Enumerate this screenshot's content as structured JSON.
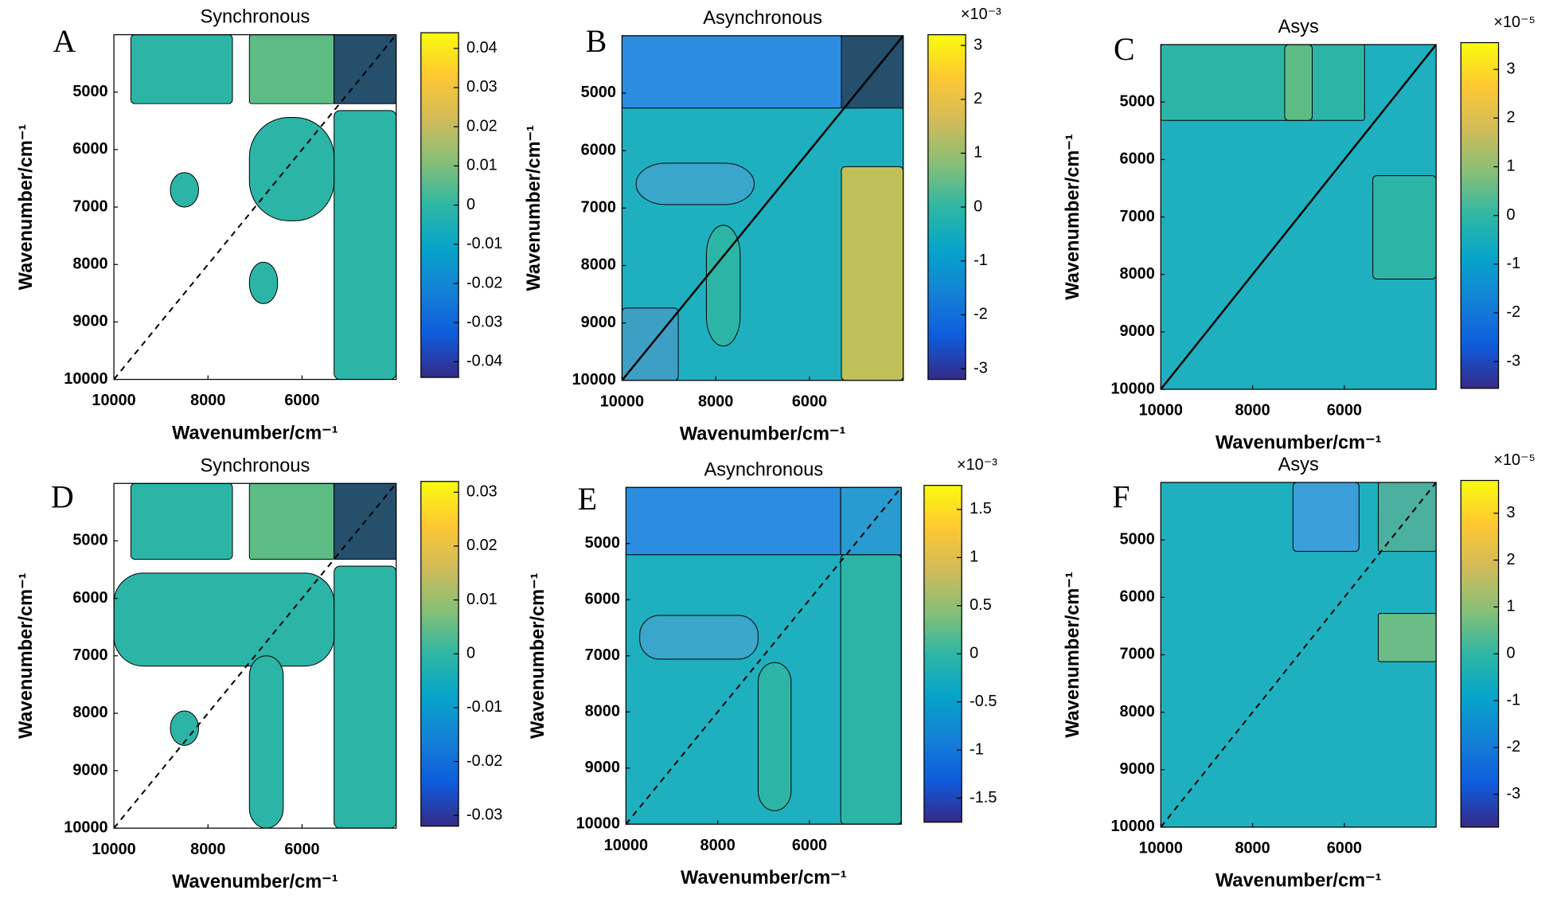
{
  "chart_data": [
    {
      "type": "contour",
      "panel": "A",
      "title": "Synchronous",
      "xlabel": "Wavenumber/cm⁻¹",
      "ylabel": "Wavenumber/cm⁻¹",
      "xlim": [
        10000,
        4000
      ],
      "xticks": [
        10000,
        8000,
        6000
      ],
      "ylim": [
        10000,
        4000
      ],
      "yticks": [
        5000,
        6000,
        7000,
        8000,
        9000,
        10000
      ],
      "clim": [
        -0.044,
        0.044
      ],
      "cticks": [
        -0.04,
        -0.03,
        -0.02,
        -0.01,
        0,
        0.01,
        0.02,
        0.03,
        0.04
      ],
      "colormap": "parula",
      "diagonal": "dashed"
    },
    {
      "type": "contour",
      "panel": "B",
      "title": "Asynchronous",
      "xlabel": "Wavenumber/cm⁻¹",
      "ylabel": "Wavenumber/cm⁻¹",
      "xlim": [
        10000,
        4000
      ],
      "xticks": [
        10000,
        8000,
        6000
      ],
      "ylim": [
        10000,
        4000
      ],
      "yticks": [
        5000,
        6000,
        7000,
        8000,
        9000,
        10000
      ],
      "clim": [
        -3.2,
        3.2
      ],
      "cticks": [
        -3,
        -2,
        -1,
        0,
        1,
        2,
        3
      ],
      "colorbar_exponent": "×10⁻³",
      "colormap": "parula",
      "diagonal": "solid"
    },
    {
      "type": "contour",
      "panel": "C",
      "title": "Asys",
      "xlabel": "Wavenumber/cm⁻¹",
      "ylabel": "Wavenumber/cm⁻¹",
      "xlim": [
        10000,
        4000
      ],
      "xticks": [
        10000,
        8000,
        6000
      ],
      "ylim": [
        10000,
        4000
      ],
      "yticks": [
        5000,
        6000,
        7000,
        8000,
        9000,
        10000
      ],
      "clim": [
        -3.55,
        3.55
      ],
      "cticks": [
        -3,
        -2,
        -1,
        0,
        1,
        2,
        3
      ],
      "colorbar_exponent": "×10⁻⁵",
      "colormap": "parula",
      "diagonal": "solid"
    },
    {
      "type": "contour",
      "panel": "D",
      "title": "Synchronous",
      "xlabel": "Wavenumber/cm⁻¹",
      "ylabel": "Wavenumber/cm⁻¹",
      "xlim": [
        10000,
        4000
      ],
      "xticks": [
        10000,
        8000,
        6000
      ],
      "ylim": [
        10000,
        4000
      ],
      "yticks": [
        5000,
        6000,
        7000,
        8000,
        9000,
        10000
      ],
      "clim": [
        -0.032,
        0.032
      ],
      "cticks": [
        -0.03,
        -0.02,
        -0.01,
        0,
        0.01,
        0.02,
        0.03
      ],
      "colormap": "parula",
      "diagonal": "dashed"
    },
    {
      "type": "contour",
      "panel": "E",
      "title": "Asynchronous",
      "xlabel": "Wavenumber/cm⁻¹",
      "ylabel": "Wavenumber/cm⁻¹",
      "xlim": [
        10000,
        4000
      ],
      "xticks": [
        10000,
        8000,
        6000
      ],
      "ylim": [
        10000,
        4000
      ],
      "yticks": [
        5000,
        6000,
        7000,
        8000,
        9000,
        10000
      ],
      "clim": [
        -1.75,
        1.75
      ],
      "cticks": [
        -1.5,
        -1,
        -0.5,
        0,
        0.5,
        1,
        1.5
      ],
      "colorbar_exponent": "×10⁻³",
      "colormap": "parula",
      "diagonal": "dashed"
    },
    {
      "type": "contour",
      "panel": "F",
      "title": "Asys",
      "xlabel": "Wavenumber/cm⁻¹",
      "ylabel": "Wavenumber/cm⁻¹",
      "xlim": [
        10000,
        4000
      ],
      "xticks": [
        10000,
        8000,
        6000
      ],
      "ylim": [
        10000,
        4000
      ],
      "yticks": [
        5000,
        6000,
        7000,
        8000,
        9000,
        10000
      ],
      "clim": [
        -3.7,
        3.7
      ],
      "cticks": [
        -3,
        -2,
        -1,
        0,
        1,
        2,
        3
      ],
      "colorbar_exponent": "×10⁻⁵",
      "colormap": "parula",
      "diagonal": "dashed"
    }
  ]
}
